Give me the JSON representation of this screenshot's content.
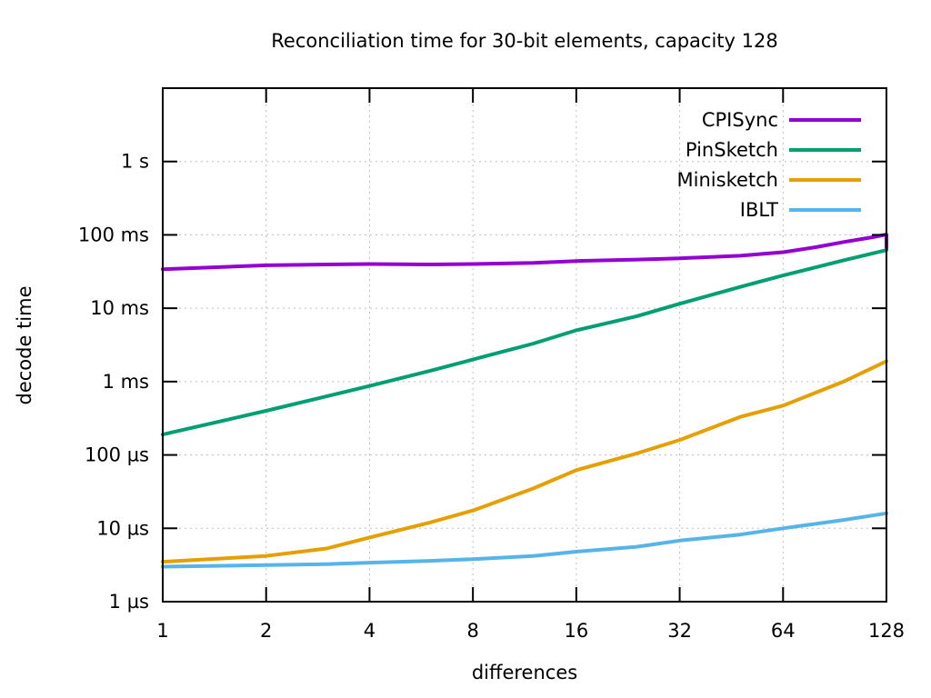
{
  "page": {
    "background": "#ffffff",
    "text_color": "#000000",
    "grid_color": "#bdbdbd",
    "border_color": "#000000"
  },
  "chart_data": {
    "type": "line",
    "title": "Reconciliation time for 30-bit elements, capacity 128",
    "xlabel": "differences",
    "ylabel": "decode time",
    "x_scale": "log2",
    "y_scale": "log10",
    "xlim": [
      1,
      128
    ],
    "ylim_us": [
      1,
      10000000
    ],
    "grid": true,
    "legend_position": "top-right-inside",
    "x_ticks": [
      {
        "v": 1,
        "label": "1"
      },
      {
        "v": 2,
        "label": "2"
      },
      {
        "v": 4,
        "label": "4"
      },
      {
        "v": 8,
        "label": "8"
      },
      {
        "v": 16,
        "label": "16"
      },
      {
        "v": 32,
        "label": "32"
      },
      {
        "v": 64,
        "label": "64"
      },
      {
        "v": 128,
        "label": "128"
      }
    ],
    "y_ticks": [
      {
        "v": 1,
        "label": "1 µs"
      },
      {
        "v": 10,
        "label": "10 µs"
      },
      {
        "v": 100,
        "label": "100 µs"
      },
      {
        "v": 1000,
        "label": "1 ms"
      },
      {
        "v": 10000,
        "label": "10 ms"
      },
      {
        "v": 100000,
        "label": "100 ms"
      },
      {
        "v": 1000000,
        "label": "1 s"
      }
    ],
    "series": [
      {
        "name": "CPISync",
        "color": "#9400d3",
        "points_x_us": [
          [
            1,
            34000
          ],
          [
            2,
            38500
          ],
          [
            3,
            39500
          ],
          [
            4,
            40000
          ],
          [
            6,
            39500
          ],
          [
            8,
            40000
          ],
          [
            12,
            41500
          ],
          [
            16,
            44000
          ],
          [
            24,
            46000
          ],
          [
            32,
            48000
          ],
          [
            48,
            52000
          ],
          [
            64,
            58000
          ],
          [
            80,
            68000
          ],
          [
            96,
            80000
          ],
          [
            112,
            90000
          ],
          [
            120,
            95000
          ],
          [
            126,
            100000
          ],
          [
            128,
            101000
          ],
          [
            128,
            64000
          ]
        ]
      },
      {
        "name": "PinSketch",
        "color": "#009e73",
        "points_x_us": [
          [
            1,
            190
          ],
          [
            2,
            400
          ],
          [
            3,
            630
          ],
          [
            4,
            870
          ],
          [
            6,
            1400
          ],
          [
            8,
            2000
          ],
          [
            12,
            3300
          ],
          [
            16,
            5000
          ],
          [
            24,
            7800
          ],
          [
            32,
            11500
          ],
          [
            48,
            19500
          ],
          [
            64,
            28000
          ],
          [
            96,
            45000
          ],
          [
            128,
            62000
          ]
        ]
      },
      {
        "name": "Minisketch",
        "color": "#e69f00",
        "points_x_us": [
          [
            1,
            3.5
          ],
          [
            2,
            4.2
          ],
          [
            3,
            5.3
          ],
          [
            4,
            7.5
          ],
          [
            6,
            12
          ],
          [
            8,
            17.5
          ],
          [
            12,
            35
          ],
          [
            16,
            62
          ],
          [
            24,
            105
          ],
          [
            32,
            160
          ],
          [
            48,
            330
          ],
          [
            64,
            470
          ],
          [
            96,
            1000
          ],
          [
            128,
            1900
          ]
        ]
      },
      {
        "name": "IBLT",
        "color": "#56b4e9",
        "points_x_us": [
          [
            1,
            3.0
          ],
          [
            2,
            3.15
          ],
          [
            3,
            3.25
          ],
          [
            4,
            3.4
          ],
          [
            6,
            3.6
          ],
          [
            8,
            3.8
          ],
          [
            12,
            4.2
          ],
          [
            16,
            4.8
          ],
          [
            24,
            5.6
          ],
          [
            32,
            6.8
          ],
          [
            48,
            8.2
          ],
          [
            64,
            10
          ],
          [
            96,
            13
          ],
          [
            128,
            16
          ]
        ]
      }
    ]
  }
}
